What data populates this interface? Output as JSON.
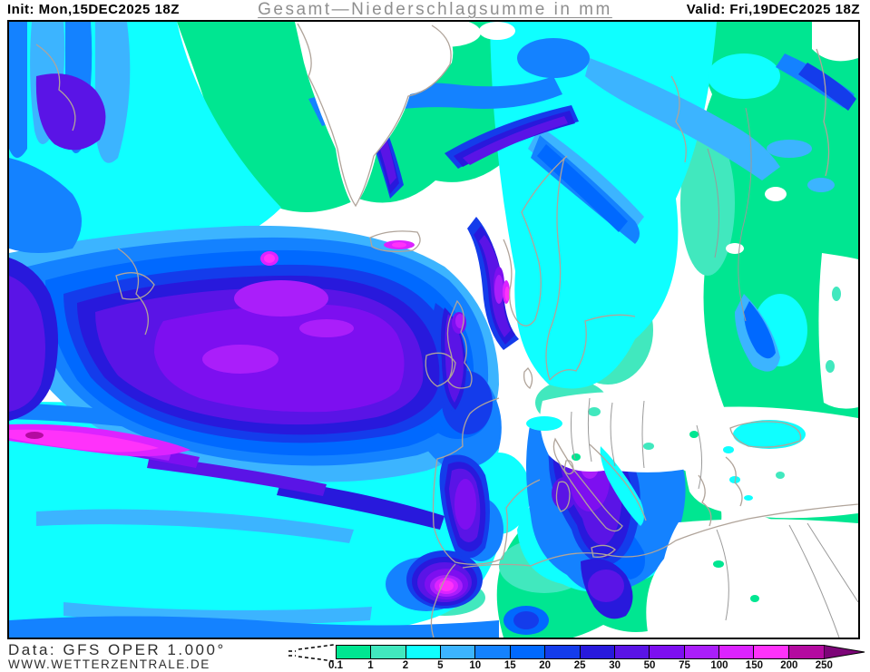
{
  "header": {
    "init_label": "Init: Mon,15DEC2025 18Z",
    "title": "Gesamt—Niederschlagsumme in mm",
    "valid_label": "Valid: Fri,19DEC2025 18Z"
  },
  "footer": {
    "data_source": "Data: GFS OPER 1.000°",
    "website": "WWW.WETTERZENTRALE.DE"
  },
  "legend": {
    "unit": "mm",
    "dashed_below_min": true,
    "labels": [
      "0.1",
      "1",
      "2",
      "5",
      "10",
      "15",
      "20",
      "25",
      "30",
      "50",
      "75",
      "100",
      "150",
      "200",
      "250"
    ],
    "segment_colors": [
      "#00E691",
      "#41E8BE",
      "#0FFFFF",
      "#3CB4FF",
      "#1482FF",
      "#0069FF",
      "#143CEB",
      "#2819DC",
      "#5A14E6",
      "#7D0FF0",
      "#AA1EFA",
      "#DC23FF",
      "#FF32FA",
      "#B40AA0"
    ],
    "overflow_color": "#7D0578"
  },
  "chart_data": {
    "type": "heatmap",
    "title": "Gesamt—Niederschlagsumme in mm",
    "unit": "mm",
    "model_run": {
      "model": "GFS OPER",
      "resolution": "1.000°",
      "init": "Mon,15DEC2025 18Z",
      "valid": "Fri,19DEC2025 18Z"
    },
    "region": "North Atlantic and Europe",
    "scale_thresholds_mm": [
      0.1,
      1,
      2,
      5,
      10,
      15,
      20,
      25,
      30,
      50,
      75,
      100,
      150,
      200,
      250
    ],
    "scale_colors": [
      "#00E691",
      "#41E8BE",
      "#0FFFFF",
      "#3CB4FF",
      "#1482FF",
      "#0069FF",
      "#143CEB",
      "#2819DC",
      "#5A14E6",
      "#7D0FF0",
      "#AA1EFA",
      "#DC23FF",
      "#FF32FA",
      "#B40AA0"
    ],
    "overflow_color": "#7D0578",
    "notable_features": [
      "Broad 30-150 mm maximum over the central North Atlantic south of Iceland",
      "Band exceeding 150-250 mm at the western map edge near the mid-Atlantic",
      "150+ mm strip along the southwest coast of Norway and south Iceland",
      "Local maxima above 100 mm over central Italy, eastern Spain and northern Morocco",
      "Mostly dry (below 0.1 mm) over southeastern Europe, Turkey and eastern North Africa"
    ]
  }
}
